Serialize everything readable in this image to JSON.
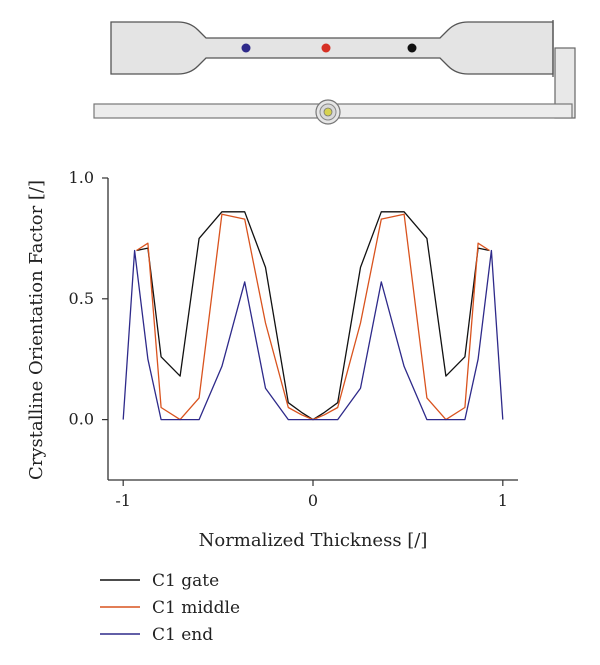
{
  "chart_data": {
    "type": "line",
    "xlabel": "Normalized Thickness [/]",
    "ylabel": "Crystalline Orientation Factor [/]",
    "xlim": [
      -1.08,
      1.08
    ],
    "ylim": [
      -0.25,
      1.0
    ],
    "x_ticks": [
      -1,
      0,
      1
    ],
    "x_tick_labels": [
      "-1",
      "0",
      "1"
    ],
    "y_ticks": [
      0.0,
      0.5,
      1.0
    ],
    "y_tick_labels": [
      "0.0",
      "0.5",
      "1.0"
    ],
    "legend_position": "bottom-left",
    "series": [
      {
        "name": "C1 gate",
        "color": "#111111",
        "x": [
          -0.93,
          -0.87,
          -0.8,
          -0.7,
          -0.6,
          -0.48,
          -0.36,
          -0.25,
          -0.13,
          -0.06,
          0.0,
          0.06,
          0.13,
          0.25,
          0.36,
          0.48,
          0.6,
          0.7,
          0.8,
          0.87,
          0.93
        ],
        "y": [
          0.7,
          0.71,
          0.26,
          0.18,
          0.75,
          0.86,
          0.86,
          0.63,
          0.07,
          0.03,
          0.0,
          0.03,
          0.07,
          0.63,
          0.86,
          0.86,
          0.75,
          0.18,
          0.26,
          0.71,
          0.7
        ]
      },
      {
        "name": "C1 middle",
        "color": "#d9531e",
        "x": [
          -0.93,
          -0.87,
          -0.8,
          -0.7,
          -0.6,
          -0.48,
          -0.36,
          -0.25,
          -0.13,
          -0.06,
          0.0,
          0.06,
          0.13,
          0.25,
          0.36,
          0.48,
          0.6,
          0.7,
          0.8,
          0.87,
          0.93
        ],
        "y": [
          0.7,
          0.73,
          0.05,
          0.0,
          0.09,
          0.85,
          0.83,
          0.4,
          0.05,
          0.02,
          0.0,
          0.02,
          0.05,
          0.4,
          0.83,
          0.85,
          0.09,
          0.0,
          0.05,
          0.73,
          0.7
        ]
      },
      {
        "name": "C1 end",
        "color": "#2e2a8a",
        "x": [
          -1.0,
          -0.94,
          -0.87,
          -0.8,
          -0.7,
          -0.6,
          -0.48,
          -0.36,
          -0.25,
          -0.13,
          0.0,
          0.13,
          0.25,
          0.36,
          0.48,
          0.6,
          0.7,
          0.8,
          0.87,
          0.94,
          1.0
        ],
        "y": [
          0.0,
          0.7,
          0.25,
          0.0,
          0.0,
          0.0,
          0.22,
          0.57,
          0.13,
          0.0,
          0.0,
          0.0,
          0.13,
          0.57,
          0.22,
          0.0,
          0.0,
          0.0,
          0.25,
          0.7,
          0.0
        ]
      }
    ]
  },
  "specimen": {
    "marker_colors": [
      "#2e2a8a",
      "#d63024",
      "#111111"
    ]
  }
}
